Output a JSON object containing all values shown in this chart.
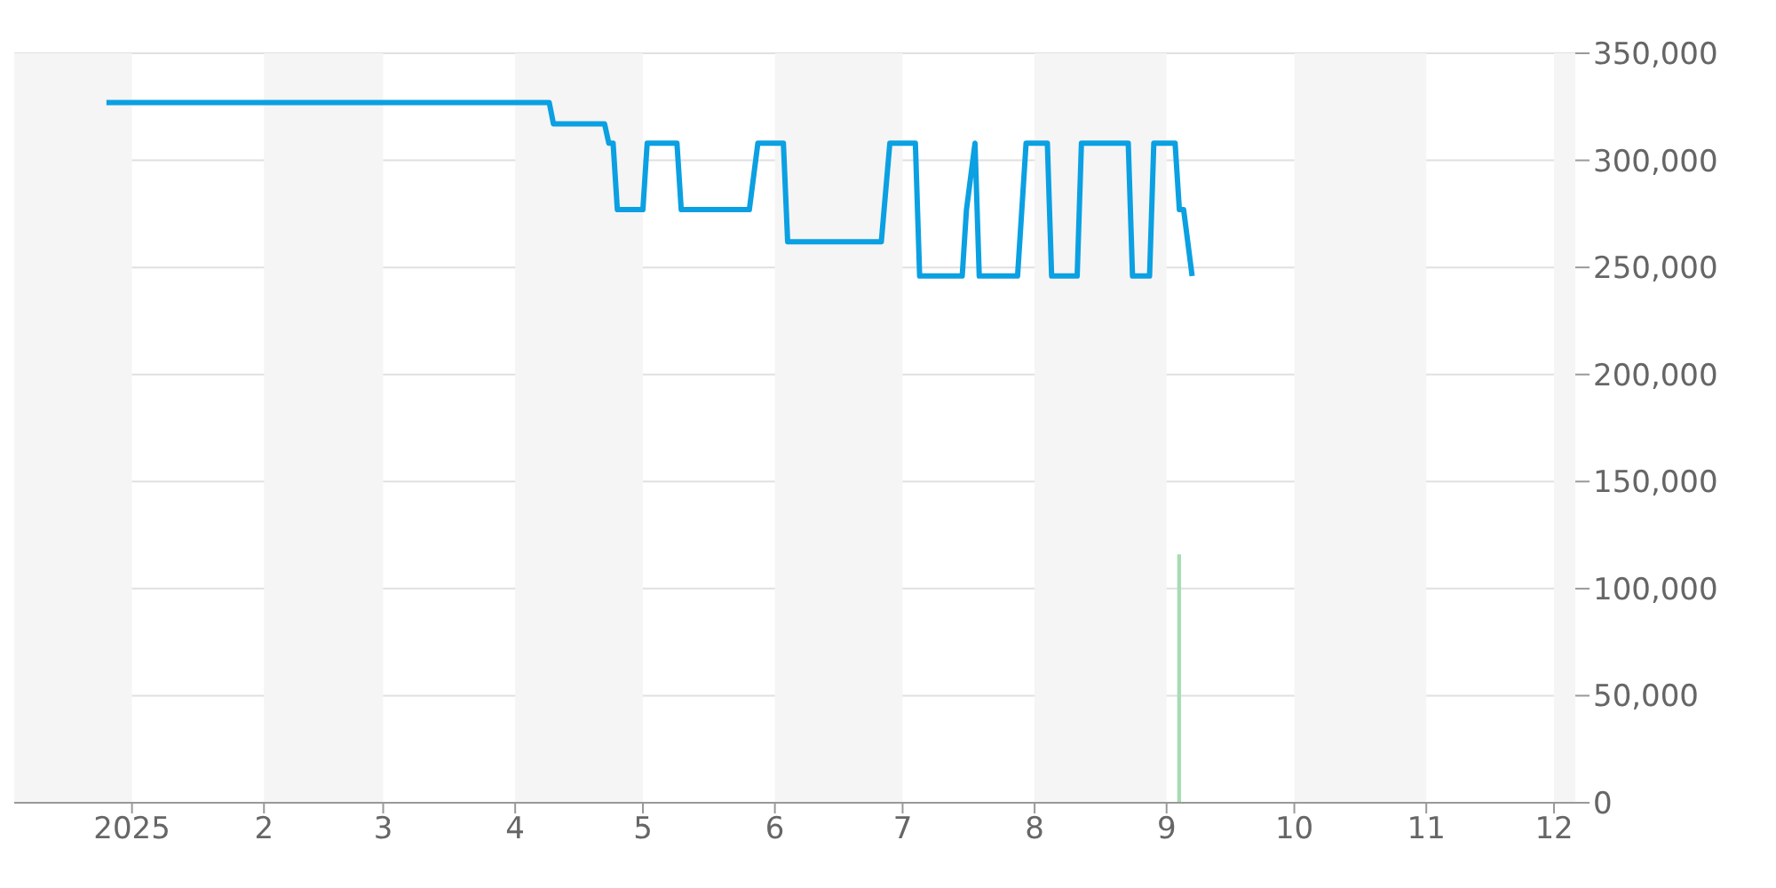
{
  "chart_data": {
    "type": "line",
    "xlim": [
      "2024-12-01",
      "2025-12-06"
    ],
    "ylim": [
      0,
      350000
    ],
    "xticks": [
      {
        "value": "2025-01-01",
        "label": "2025"
      },
      {
        "value": "2025-02-01",
        "label": "2"
      },
      {
        "value": "2025-03-01",
        "label": "3"
      },
      {
        "value": "2025-04-01",
        "label": "4"
      },
      {
        "value": "2025-05-01",
        "label": "5"
      },
      {
        "value": "2025-06-01",
        "label": "6"
      },
      {
        "value": "2025-07-01",
        "label": "7"
      },
      {
        "value": "2025-08-01",
        "label": "8"
      },
      {
        "value": "2025-09-01",
        "label": "9"
      },
      {
        "value": "2025-10-01",
        "label": "10"
      },
      {
        "value": "2025-11-01",
        "label": "11"
      },
      {
        "value": "2025-12-01",
        "label": "12"
      }
    ],
    "yticks": [
      0,
      {
        "value": 50000,
        "label": "50,000"
      },
      {
        "value": 100000,
        "label": "100,000"
      },
      {
        "value": 150000,
        "label": "150,000"
      },
      {
        "value": 200000,
        "label": "200,000"
      },
      {
        "value": 250000,
        "label": "250,000"
      },
      {
        "value": 300000,
        "label": "300,000"
      },
      {
        "value": 350000,
        "label": "350,000"
      }
    ],
    "grid": "y",
    "legend": false,
    "marker": "none",
    "line_style": "solid",
    "bands": [
      {
        "axis": "x",
        "from": "2024-12-01",
        "to": "2025-01-01",
        "color": "#f5f5f5"
      },
      {
        "axis": "x",
        "from": "2025-02-01",
        "to": "2025-03-01",
        "color": "#f5f5f5"
      },
      {
        "axis": "x",
        "from": "2025-04-01",
        "to": "2025-05-01",
        "color": "#f5f5f5"
      },
      {
        "axis": "x",
        "from": "2025-06-01",
        "to": "2025-07-01",
        "color": "#f5f5f5"
      },
      {
        "axis": "x",
        "from": "2025-08-01",
        "to": "2025-09-01",
        "color": "#f5f5f5"
      },
      {
        "axis": "x",
        "from": "2025-10-01",
        "to": "2025-11-01",
        "color": "#f5f5f5"
      },
      {
        "axis": "x",
        "from": "2025-12-01",
        "to": "2025-12-06",
        "color": "#f5f5f5"
      }
    ],
    "series": [
      {
        "type": "bar",
        "color": "#a8dcb4",
        "x": [
          "2025-09-04"
        ],
        "values": [
          116000
        ]
      },
      {
        "color": "#0ba0e2",
        "x": [
          "2024-12-26",
          "2025-04-09",
          "2025-04-10",
          "2025-04-22",
          "2025-04-23",
          "2025-04-24",
          "2025-04-25",
          "2025-05-01",
          "2025-05-02",
          "2025-05-09",
          "2025-05-10",
          "2025-05-26",
          "2025-05-28",
          "2025-06-03",
          "2025-06-04",
          "2025-06-26",
          "2025-06-28",
          "2025-07-04",
          "2025-07-05",
          "2025-07-15",
          "2025-07-16",
          "2025-07-18",
          "2025-07-19",
          "2025-07-28",
          "2025-07-30",
          "2025-08-04",
          "2025-08-05",
          "2025-08-11",
          "2025-08-12",
          "2025-08-23",
          "2025-08-24",
          "2025-08-28",
          "2025-08-29",
          "2025-09-03",
          "2025-09-04",
          "2025-09-05",
          "2025-09-07"
        ],
        "values": [
          327000,
          327000,
          317000,
          317000,
          308000,
          308000,
          277000,
          277000,
          308000,
          308000,
          277000,
          277000,
          308000,
          308000,
          262000,
          262000,
          308000,
          308000,
          246000,
          246000,
          277000,
          308000,
          246000,
          246000,
          308000,
          308000,
          246000,
          246000,
          308000,
          308000,
          246000,
          246000,
          308000,
          308000,
          277000,
          277000,
          246000
        ]
      }
    ]
  }
}
